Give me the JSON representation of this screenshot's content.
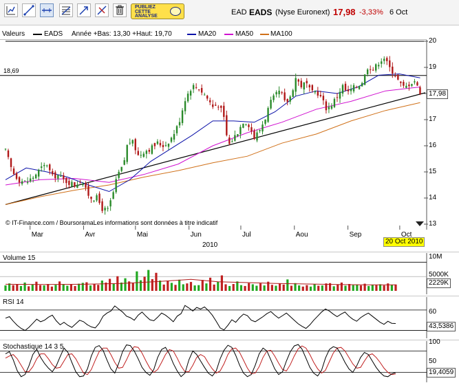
{
  "toolbar": {
    "buttons": [
      {
        "name": "chart-type-icon",
        "active": false
      },
      {
        "name": "draw-line-icon",
        "active": false
      },
      {
        "name": "horizontal-line-icon",
        "active": true
      },
      {
        "name": "fibonacci-icon",
        "active": false
      },
      {
        "name": "trend-arrow-icon",
        "active": false
      },
      {
        "name": "delete-line-icon",
        "active": false
      },
      {
        "name": "trash-icon",
        "active": false
      }
    ],
    "publish_label_1": "PUBLIEZ",
    "publish_label_2": "CETTE",
    "publish_label_3": "ANALYSE"
  },
  "quote": {
    "code": "EAD",
    "name": "EADS",
    "market": "(Nyse Euronext)",
    "price": "17,98",
    "change": "-3,33%",
    "date": "6 Oct"
  },
  "legend": {
    "values_label": "Valeurs",
    "series_name": "EADS",
    "year_range": "Année +Bas: 13,30 +Haut: 19,70",
    "ma20": "MA20",
    "ma50": "MA50",
    "ma100": "MA100"
  },
  "colors": {
    "up": "#2a8a2a",
    "down": "#b01818",
    "ma20": "#0a10a8",
    "ma50": "#d010d0",
    "ma100": "#d07018",
    "volume_up": "#22a822",
    "volume_down": "#c02020",
    "volume_ma": "#b01818",
    "rsi": "#000000",
    "stoch_k": "#000000",
    "stoch_d": "#c02020"
  },
  "chart_data": [
    {
      "type": "candlestick",
      "title": "",
      "series_name": "EADS",
      "ylim": [
        13,
        20
      ],
      "y_ticks": [
        "20",
        "19",
        "18",
        "17",
        "16",
        "15",
        "14",
        "13"
      ],
      "x_ticks": [
        "Mar",
        "Avr",
        "Mai",
        "Jun",
        "Jul",
        "Aou",
        "Sep",
        "Oct"
      ],
      "x_tick_days": [
        19,
        50,
        80,
        111,
        141,
        172,
        203,
        233
      ],
      "year_label": "2010",
      "last_value": "17,98",
      "last_value_num": 17.98,
      "date_label": "20 Oct 2010",
      "resistance_label": "18,69",
      "resistance_value": 18.69,
      "trendline": [
        [
          0,
          13.75
        ],
        [
          243,
          18.03
        ]
      ],
      "credit": "© IT-Finance.com / BoursoramaLes informations sont données à titre indicatif",
      "closes": [
        {
          "d": 0,
          "c": 15.8
        },
        {
          "d": 4,
          "c": 15.0
        },
        {
          "d": 8,
          "c": 14.7
        },
        {
          "d": 12,
          "c": 14.6
        },
        {
          "d": 16,
          "c": 14.8
        },
        {
          "d": 20,
          "c": 15.1
        },
        {
          "d": 24,
          "c": 15.3
        },
        {
          "d": 27,
          "c": 14.8
        },
        {
          "d": 30,
          "c": 14.9
        },
        {
          "d": 33,
          "c": 14.7
        },
        {
          "d": 37,
          "c": 14.6
        },
        {
          "d": 40,
          "c": 14.5
        },
        {
          "d": 44,
          "c": 14.7
        },
        {
          "d": 47,
          "c": 14.2
        },
        {
          "d": 50,
          "c": 14.0
        },
        {
          "d": 53,
          "c": 14.0
        },
        {
          "d": 56,
          "c": 13.6
        },
        {
          "d": 59,
          "c": 13.5
        },
        {
          "d": 62,
          "c": 14.1
        },
        {
          "d": 65,
          "c": 14.9
        },
        {
          "d": 68,
          "c": 15.2
        },
        {
          "d": 71,
          "c": 16.2
        },
        {
          "d": 74,
          "c": 16.1
        },
        {
          "d": 77,
          "c": 15.6
        },
        {
          "d": 80,
          "c": 15.8
        },
        {
          "d": 84,
          "c": 15.9
        },
        {
          "d": 88,
          "c": 16.1
        },
        {
          "d": 92,
          "c": 16.0
        },
        {
          "d": 96,
          "c": 16.3
        },
        {
          "d": 100,
          "c": 16.8
        },
        {
          "d": 104,
          "c": 17.8
        },
        {
          "d": 108,
          "c": 18.3
        },
        {
          "d": 112,
          "c": 18.2
        },
        {
          "d": 116,
          "c": 17.9
        },
        {
          "d": 120,
          "c": 17.5
        },
        {
          "d": 123,
          "c": 17.6
        },
        {
          "d": 126,
          "c": 17.2
        },
        {
          "d": 129,
          "c": 16.0
        },
        {
          "d": 132,
          "c": 16.3
        },
        {
          "d": 135,
          "c": 16.6
        },
        {
          "d": 138,
          "c": 17.0
        },
        {
          "d": 141,
          "c": 16.8
        },
        {
          "d": 144,
          "c": 16.3
        },
        {
          "d": 147,
          "c": 16.6
        },
        {
          "d": 150,
          "c": 17.0
        },
        {
          "d": 153,
          "c": 17.6
        },
        {
          "d": 156,
          "c": 17.9
        },
        {
          "d": 159,
          "c": 18.1
        },
        {
          "d": 162,
          "c": 17.6
        },
        {
          "d": 165,
          "c": 17.9
        },
        {
          "d": 168,
          "c": 18.6
        },
        {
          "d": 171,
          "c": 18.3
        },
        {
          "d": 174,
          "c": 18.4
        },
        {
          "d": 177,
          "c": 18.0
        },
        {
          "d": 180,
          "c": 18.1
        },
        {
          "d": 183,
          "c": 17.8
        },
        {
          "d": 186,
          "c": 17.4
        },
        {
          "d": 189,
          "c": 17.6
        },
        {
          "d": 192,
          "c": 17.9
        },
        {
          "d": 195,
          "c": 18.3
        },
        {
          "d": 198,
          "c": 18.0
        },
        {
          "d": 201,
          "c": 18.2
        },
        {
          "d": 204,
          "c": 18.3
        },
        {
          "d": 207,
          "c": 18.5
        },
        {
          "d": 210,
          "c": 19.1
        },
        {
          "d": 213,
          "c": 18.9
        },
        {
          "d": 216,
          "c": 19.2
        },
        {
          "d": 219,
          "c": 19.4
        },
        {
          "d": 222,
          "c": 19.0
        },
        {
          "d": 225,
          "c": 18.8
        },
        {
          "d": 228,
          "c": 18.4
        },
        {
          "d": 231,
          "c": 18.2
        },
        {
          "d": 234,
          "c": 18.4
        },
        {
          "d": 237,
          "c": 18.5
        },
        {
          "d": 240,
          "c": 17.98
        }
      ],
      "ma20_pts": [
        [
          0,
          14.7
        ],
        [
          12,
          15.15
        ],
        [
          24,
          15.0
        ],
        [
          36,
          14.8
        ],
        [
          48,
          14.5
        ],
        [
          60,
          14.25
        ],
        [
          72,
          14.7
        ],
        [
          84,
          15.4
        ],
        [
          96,
          15.9
        ],
        [
          108,
          16.4
        ],
        [
          120,
          16.95
        ],
        [
          132,
          16.95
        ],
        [
          144,
          16.9
        ],
        [
          156,
          17.3
        ],
        [
          168,
          17.9
        ],
        [
          180,
          18.1
        ],
        [
          192,
          18.0
        ],
        [
          204,
          18.25
        ],
        [
          216,
          18.7
        ],
        [
          228,
          18.75
        ],
        [
          240,
          18.6
        ]
      ],
      "ma50_pts": [
        [
          0,
          14.5
        ],
        [
          20,
          14.7
        ],
        [
          40,
          14.75
        ],
        [
          60,
          14.6
        ],
        [
          80,
          14.9
        ],
        [
          100,
          15.3
        ],
        [
          120,
          16.0
        ],
        [
          140,
          16.5
        ],
        [
          160,
          16.9
        ],
        [
          180,
          17.4
        ],
        [
          200,
          17.7
        ],
        [
          220,
          18.1
        ],
        [
          240,
          18.25
        ]
      ],
      "ma100_pts": [
        [
          0,
          13.75
        ],
        [
          20,
          14.05
        ],
        [
          40,
          14.3
        ],
        [
          60,
          14.5
        ],
        [
          80,
          14.8
        ],
        [
          100,
          15.05
        ],
        [
          120,
          15.35
        ],
        [
          140,
          15.6
        ],
        [
          160,
          16.1
        ],
        [
          180,
          16.45
        ],
        [
          200,
          16.95
        ],
        [
          220,
          17.35
        ],
        [
          240,
          17.65
        ]
      ]
    },
    {
      "type": "bar",
      "title": "Volume 15",
      "y_ticks": [
        "10M",
        "5000K"
      ],
      "last_value": "2229K",
      "ylim": [
        0,
        12
      ],
      "values_m": [
        1.9,
        2.6,
        2.0,
        2.3,
        1.7,
        2.9,
        1.6,
        2.2,
        3.2,
        2.0,
        1.9,
        2.4,
        1.5,
        2.1,
        3.3,
        2.4,
        1.8,
        2.2,
        1.7,
        2.5,
        2.8,
        3.0,
        1.9,
        2.3,
        2.1,
        3.6,
        2.9,
        4.2,
        2.4,
        5.1,
        2.9,
        4.4,
        3.3,
        2.7,
        6.8,
        3.7,
        4.9,
        7.3,
        4.1,
        6.3,
        3.6,
        2.2,
        3.4,
        2.8,
        2.1,
        3.9,
        2.3,
        2.6,
        3.1,
        1.9,
        2.0,
        3.8,
        2.6,
        4.6,
        2.2,
        3.2,
        5.4,
        2.3,
        1.7,
        2.4,
        3.3,
        2.0,
        1.7,
        2.7,
        2.3,
        1.8,
        2.6,
        1.9,
        3.2,
        2.1,
        1.8,
        2.6,
        2.2,
        4.0,
        1.8,
        2.7,
        1.9,
        1.5,
        2.0,
        1.5,
        2.4,
        1.8,
        1.9,
        2.6,
        2.7,
        1.6,
        2.2,
        2.9,
        1.8,
        2.4,
        2.0,
        2.2,
        1.9,
        2.5,
        1.7,
        2.1,
        2.0,
        2.3,
        1.9,
        2.6,
        2.1,
        2.229
      ],
      "ma_pts": [
        [
          0,
          2.3
        ],
        [
          10,
          2.2
        ],
        [
          20,
          2.3
        ],
        [
          30,
          2.6
        ],
        [
          40,
          3.3
        ],
        [
          48,
          4.0
        ],
        [
          55,
          3.2
        ],
        [
          62,
          2.9
        ],
        [
          70,
          2.6
        ],
        [
          78,
          2.4
        ],
        [
          86,
          2.2
        ],
        [
          94,
          2.1
        ],
        [
          101,
          2.1
        ]
      ]
    },
    {
      "type": "line",
      "title": "RSI 14",
      "y_ticks": [
        "60"
      ],
      "ylim": [
        20,
        90
      ],
      "levels": [
        70,
        30
      ],
      "last_value": "43,5386",
      "values": [
        54,
        57,
        48,
        40,
        34,
        30,
        36,
        44,
        52,
        47,
        50,
        56,
        60,
        49,
        41,
        46,
        40,
        36,
        43,
        50,
        47,
        41,
        37,
        35,
        44,
        58,
        64,
        68,
        78,
        72,
        66,
        58,
        55,
        50,
        60,
        66,
        58,
        51,
        49,
        56,
        64,
        60,
        54,
        47,
        58,
        63,
        79,
        74,
        68,
        75,
        72,
        76,
        69,
        60,
        48,
        35,
        31,
        40,
        51,
        46,
        55,
        62,
        59,
        50,
        47,
        52,
        57,
        63,
        67,
        60,
        54,
        59,
        64,
        57,
        50,
        43,
        38,
        34,
        41,
        50,
        58,
        66,
        72,
        68,
        62,
        57,
        62,
        66,
        58,
        52,
        48,
        55,
        60,
        64,
        58,
        52,
        46,
        42,
        48,
        44,
        43.5
      ]
    },
    {
      "type": "line",
      "title": "Stochastique 14 3 5",
      "y_ticks": [
        "100",
        "50"
      ],
      "ylim": [
        0,
        100
      ],
      "levels": [
        80,
        20
      ],
      "last_value": "19,4059",
      "k_values": [
        72,
        78,
        55,
        25,
        8,
        14,
        38,
        70,
        85,
        62,
        45,
        32,
        22,
        38,
        64,
        88,
        76,
        48,
        22,
        8,
        10,
        30,
        66,
        90,
        95,
        82,
        55,
        30,
        18,
        45,
        78,
        97,
        95,
        80,
        58,
        34,
        20,
        12,
        28,
        62,
        84,
        90,
        72,
        45,
        24,
        8,
        18,
        55,
        80,
        70,
        52,
        34,
        18,
        10,
        24,
        58,
        82,
        96,
        90,
        68,
        40,
        18,
        8,
        14,
        40,
        72,
        88,
        80,
        55,
        30,
        14,
        22,
        52,
        78,
        94,
        98,
        85,
        60,
        34,
        18,
        10,
        26,
        60,
        84,
        92,
        88,
        70,
        48,
        30,
        20,
        38,
        62,
        76,
        70,
        52,
        34,
        20,
        10,
        8,
        16,
        19.4
      ],
      "d_values": [
        60,
        66,
        70,
        58,
        40,
        22,
        22,
        36,
        58,
        72,
        72,
        58,
        42,
        32,
        34,
        52,
        70,
        72,
        58,
        38,
        18,
        14,
        28,
        54,
        78,
        88,
        88,
        70,
        48,
        32,
        34,
        55,
        78,
        92,
        90,
        74,
        52,
        32,
        20,
        28,
        48,
        70,
        84,
        80,
        60,
        38,
        22,
        22,
        40,
        62,
        70,
        64,
        46,
        30,
        18,
        24,
        44,
        70,
        86,
        88,
        76,
        54,
        32,
        16,
        18,
        36,
        62,
        80,
        82,
        66,
        46,
        28,
        24,
        42,
        66,
        86,
        94,
        88,
        70,
        48,
        30,
        18,
        26,
        50,
        74,
        88,
        90,
        80,
        62,
        44,
        32,
        34,
        52,
        68,
        72,
        62,
        48,
        32,
        20,
        14,
        16
      ]
    }
  ]
}
